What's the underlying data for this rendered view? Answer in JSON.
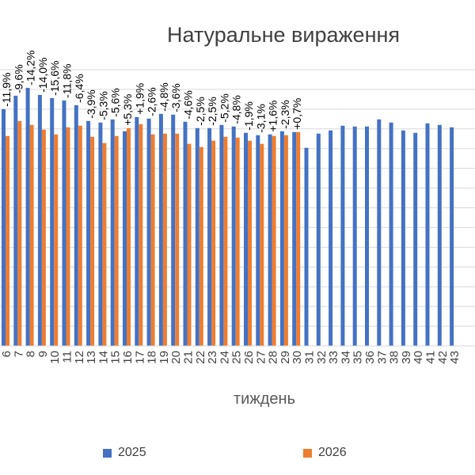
{
  "chart_data": {
    "type": "bar",
    "title": "Натуральне вираження",
    "xlabel": "тиждень",
    "ylabel": "",
    "categories": [
      "6",
      "7",
      "8",
      "9",
      "10",
      "11",
      "12",
      "13",
      "14",
      "15",
      "16",
      "17",
      "18",
      "19",
      "20",
      "21",
      "22",
      "23",
      "24",
      "25",
      "26",
      "27",
      "28",
      "29",
      "30",
      "31",
      "32",
      "33",
      "34",
      "35",
      "36",
      "37",
      "38",
      "39",
      "40",
      "41",
      "42",
      "43"
    ],
    "series": [
      {
        "name": "2025",
        "color": "#4472C4",
        "values": [
          300,
          317,
          327,
          318,
          314,
          311,
          305,
          285,
          283,
          287,
          272,
          290,
          288,
          294,
          293,
          284,
          276,
          276,
          280,
          278,
          270,
          267,
          268,
          272,
          271,
          251,
          269,
          273,
          279,
          278,
          278,
          287,
          283,
          273,
          270,
          282,
          280,
          277
        ]
      },
      {
        "name": "2026",
        "color": "#ED7D31",
        "values": [
          266,
          285,
          280,
          274,
          268,
          277,
          279,
          265,
          257,
          266,
          276,
          281,
          268,
          269,
          269,
          256,
          252,
          260,
          265,
          264,
          260,
          256,
          266,
          267,
          271,
          null,
          null,
          null,
          null,
          null,
          null,
          null,
          null,
          null,
          null,
          null,
          null,
          null
        ]
      }
    ],
    "data_labels": [
      "-11,9%",
      "-9,6%",
      "-14,2%",
      "-14,0%",
      "-15,6%",
      "-11,8%",
      "-6,4%",
      "-3,9%",
      "-5,3%",
      "-5,6%",
      "+5,3%",
      "+1,9%",
      "-2,6%",
      "-4,8%",
      "-3,6%",
      "-4,6%",
      "-2,5%",
      "-2,5%",
      "-5,2%",
      "-4,8%",
      "-1,9%",
      "-3,1%",
      "+1,6%",
      "-2,3%",
      "+0,7%"
    ],
    "ylim": [
      0,
      350
    ],
    "grid": true,
    "legend_position": "bottom"
  }
}
